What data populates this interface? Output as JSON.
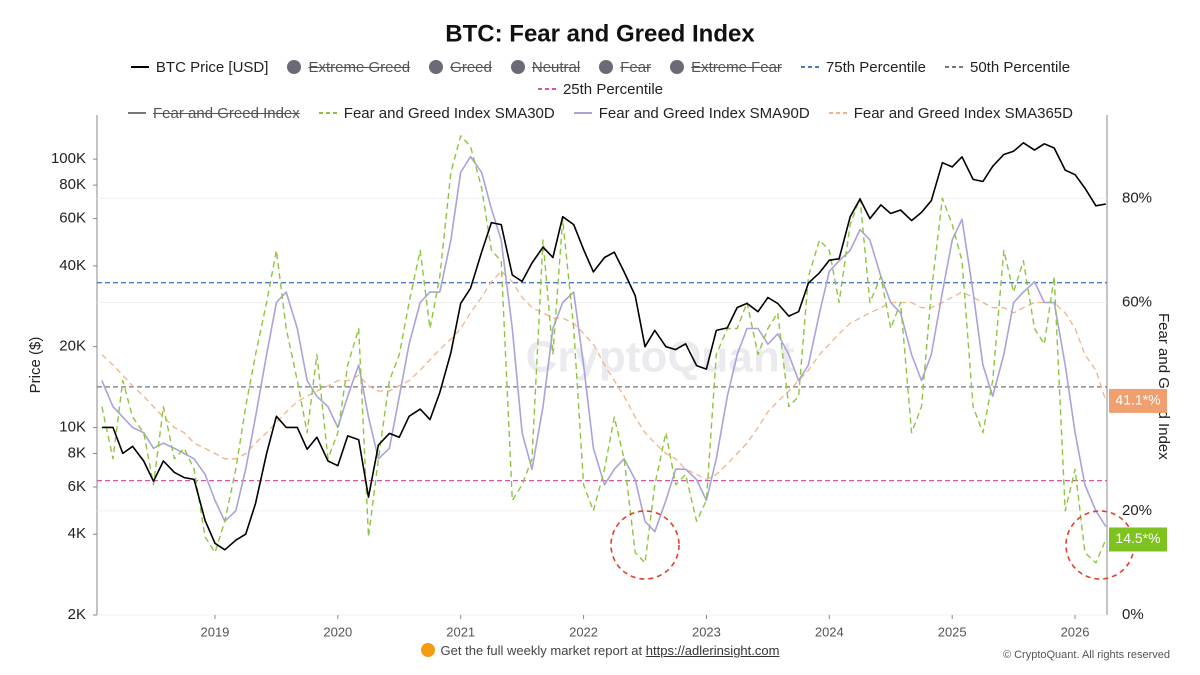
{
  "chart_data": {
    "type": "line",
    "title": "BTC: Fear and Greed Index",
    "y_label": "Price ($)",
    "y2_label": "Fear and Greed Index",
    "watermark": "CryptoQuant",
    "footer_text": "Get the full weekly market report at",
    "footer_link": "https://adlerinsight.com",
    "copyright": "© CryptoQuant. All rights reserved",
    "ylog": true,
    "grid": true,
    "xlim": [
      2018.04,
      2026.26
    ],
    "xticks": [
      2019,
      2020,
      2021,
      2022,
      2023,
      2024,
      2025,
      2026
    ],
    "ylim": [
      2000,
      146000
    ],
    "yticks": [
      {
        "value": 2000,
        "label": "2K"
      },
      {
        "value": 4000,
        "label": "4K"
      },
      {
        "value": 6000,
        "label": "6K"
      },
      {
        "value": 8000,
        "label": "8K"
      },
      {
        "value": 10000,
        "label": "10K"
      },
      {
        "value": 20000,
        "label": "20K"
      },
      {
        "value": 40000,
        "label": "40K"
      },
      {
        "value": 60000,
        "label": "60K"
      },
      {
        "value": 80000,
        "label": "80K"
      },
      {
        "value": 100000,
        "label": "100K"
      }
    ],
    "y2lim": [
      0,
      96
    ],
    "y2ticks": [
      {
        "value": 0,
        "label": "0%"
      },
      {
        "value": 20,
        "label": "20%"
      },
      {
        "value": 60,
        "label": "60%"
      },
      {
        "value": 80,
        "label": "80%"
      }
    ],
    "x": [
      2018.08,
      2018.17,
      2018.25,
      2018.33,
      2018.42,
      2018.5,
      2018.58,
      2018.67,
      2018.75,
      2018.83,
      2018.92,
      2019.0,
      2019.08,
      2019.17,
      2019.25,
      2019.33,
      2019.42,
      2019.5,
      2019.58,
      2019.67,
      2019.75,
      2019.83,
      2019.92,
      2020.0,
      2020.08,
      2020.17,
      2020.25,
      2020.33,
      2020.42,
      2020.5,
      2020.58,
      2020.67,
      2020.75,
      2020.83,
      2020.92,
      2021.0,
      2021.08,
      2021.17,
      2021.25,
      2021.33,
      2021.42,
      2021.5,
      2021.58,
      2021.67,
      2021.75,
      2021.83,
      2021.92,
      2022.0,
      2022.08,
      2022.17,
      2022.25,
      2022.33,
      2022.42,
      2022.5,
      2022.58,
      2022.67,
      2022.75,
      2022.83,
      2022.92,
      2023.0,
      2023.08,
      2023.17,
      2023.25,
      2023.33,
      2023.42,
      2023.5,
      2023.58,
      2023.67,
      2023.75,
      2023.83,
      2023.92,
      2024.0,
      2024.08,
      2024.17,
      2024.25,
      2024.33,
      2024.42,
      2024.5,
      2024.58,
      2024.67,
      2024.75,
      2024.83,
      2024.92,
      2025.0,
      2025.08,
      2025.17,
      2025.25,
      2025.33,
      2025.42,
      2025.5,
      2025.58,
      2025.67,
      2025.75,
      2025.83,
      2025.92,
      2026.0,
      2026.08,
      2026.17,
      2026.25
    ],
    "series": [
      {
        "name": "BTC Price [USD]",
        "color": "#000000",
        "axis": "y",
        "dash": false,
        "width": 1.6,
        "values": [
          10000,
          10000,
          8000,
          8500,
          7500,
          6300,
          7500,
          6800,
          6500,
          6400,
          4500,
          3700,
          3500,
          3800,
          4000,
          5200,
          8000,
          11000,
          10000,
          10000,
          8300,
          9200,
          7500,
          7200,
          9300,
          9000,
          5500,
          8600,
          9500,
          9200,
          11000,
          11700,
          10700,
          13500,
          19000,
          29000,
          33000,
          45000,
          58000,
          57000,
          37000,
          35000,
          41000,
          47000,
          43000,
          61000,
          57000,
          46000,
          38000,
          43000,
          45000,
          38000,
          31000,
          20000,
          23000,
          20000,
          19500,
          20500,
          17000,
          16500,
          23000,
          23500,
          28000,
          29000,
          27000,
          30500,
          29000,
          26000,
          27000,
          34500,
          37700,
          42000,
          42500,
          61000,
          71000,
          60000,
          67500,
          62700,
          64600,
          59000,
          63300,
          70000,
          97000,
          93500,
          102000,
          84000,
          82500,
          94000,
          104000,
          107000,
          115000,
          108000,
          114000,
          110000,
          91000,
          87500,
          78000,
          67000,
          68000
        ]
      },
      {
        "name": "Fear and Greed Index SMA30D",
        "color": "#8cc63f",
        "axis": "y2",
        "dash": true,
        "width": 1.4,
        "values": [
          40,
          30,
          45,
          38,
          35,
          25,
          40,
          30,
          32,
          28,
          15,
          12,
          18,
          28,
          40,
          50,
          60,
          70,
          55,
          45,
          35,
          50,
          30,
          35,
          48,
          55,
          15,
          30,
          45,
          50,
          60,
          70,
          55,
          65,
          85,
          92,
          90,
          82,
          70,
          68,
          22,
          25,
          30,
          72,
          50,
          76,
          55,
          25,
          20,
          28,
          38,
          30,
          12,
          10,
          25,
          35,
          25,
          27,
          18,
          22,
          50,
          55,
          55,
          60,
          50,
          55,
          58,
          40,
          42,
          65,
          72,
          70,
          60,
          75,
          80,
          60,
          65,
          55,
          60,
          35,
          40,
          62,
          80,
          75,
          68,
          40,
          35,
          45,
          70,
          62,
          68,
          55,
          52,
          65,
          20,
          28,
          12,
          10,
          14.5
        ]
      },
      {
        "name": "Fear and Greed Index SMA90D",
        "color": "#a9a3d9",
        "axis": "y2",
        "dash": false,
        "width": 1.6,
        "values": [
          45,
          40,
          38,
          36,
          35,
          32,
          33,
          32,
          31,
          30,
          27,
          22,
          18,
          20,
          28,
          38,
          50,
          60,
          62,
          55,
          45,
          42,
          40,
          36,
          42,
          48,
          38,
          30,
          32,
          42,
          52,
          60,
          62,
          62,
          72,
          85,
          88,
          85,
          78,
          72,
          55,
          35,
          28,
          40,
          55,
          60,
          62,
          48,
          32,
          25,
          28,
          30,
          26,
          18,
          16,
          22,
          28,
          28,
          26,
          22,
          30,
          42,
          50,
          55,
          55,
          52,
          54,
          50,
          45,
          48,
          58,
          66,
          68,
          70,
          74,
          72,
          65,
          60,
          58,
          50,
          45,
          50,
          62,
          72,
          76,
          62,
          48,
          42,
          50,
          60,
          62,
          64,
          60,
          60,
          48,
          35,
          25,
          20,
          17
        ]
      },
      {
        "name": "Fear and Greed Index SMA365D",
        "color": "#f0b48a",
        "axis": "y2",
        "dash": true,
        "width": 1.3,
        "values": [
          50,
          48,
          46,
          44,
          42,
          40,
          38,
          36,
          35,
          33,
          32,
          31,
          30,
          30,
          31,
          33,
          35,
          37,
          39,
          41,
          42,
          43,
          44,
          45,
          45,
          46,
          44,
          43,
          43,
          44,
          45,
          47,
          49,
          51,
          53,
          55,
          58,
          61,
          64,
          66,
          64,
          61,
          59,
          58,
          57,
          57,
          56,
          54,
          52,
          48,
          45,
          42,
          38,
          35,
          33,
          31,
          30,
          28,
          27,
          26,
          27,
          29,
          31,
          33,
          36,
          39,
          41,
          43,
          45,
          47,
          50,
          52,
          54,
          56,
          57,
          58,
          59,
          60,
          60,
          60,
          59,
          59,
          60,
          61,
          62,
          61,
          60,
          59,
          59,
          58,
          59,
          60,
          60,
          60,
          58,
          55,
          50,
          47,
          41.1
        ]
      }
    ],
    "hlines": [
      {
        "name": "75th Percentile",
        "color": "#4a78c2",
        "value": 63.8
      },
      {
        "name": "50th Percentile",
        "color": "#777777",
        "value": 43.8
      },
      {
        "name": "25th Percentile",
        "color": "#d9559f",
        "value": 25.8
      }
    ],
    "hidden_legend": [
      {
        "name": "Extreme Greed",
        "color": "#6b6b78",
        "marker": "circle"
      },
      {
        "name": "Greed",
        "color": "#6b6b78",
        "marker": "circle"
      },
      {
        "name": "Neutral",
        "color": "#6b6b78",
        "marker": "circle"
      },
      {
        "name": "Fear",
        "color": "#6b6b78",
        "marker": "circle"
      },
      {
        "name": "Extreme Fear",
        "color": "#6b6b78",
        "marker": "circle"
      },
      {
        "name": "Fear and Greed Index",
        "color": "#777777",
        "marker": "line"
      }
    ],
    "end_labels": [
      {
        "value": 41.1,
        "label": "41.1*%",
        "color": "#f0a070"
      },
      {
        "value": 14.5,
        "label": "14.5*%",
        "color": "#7dc21e"
      }
    ]
  }
}
